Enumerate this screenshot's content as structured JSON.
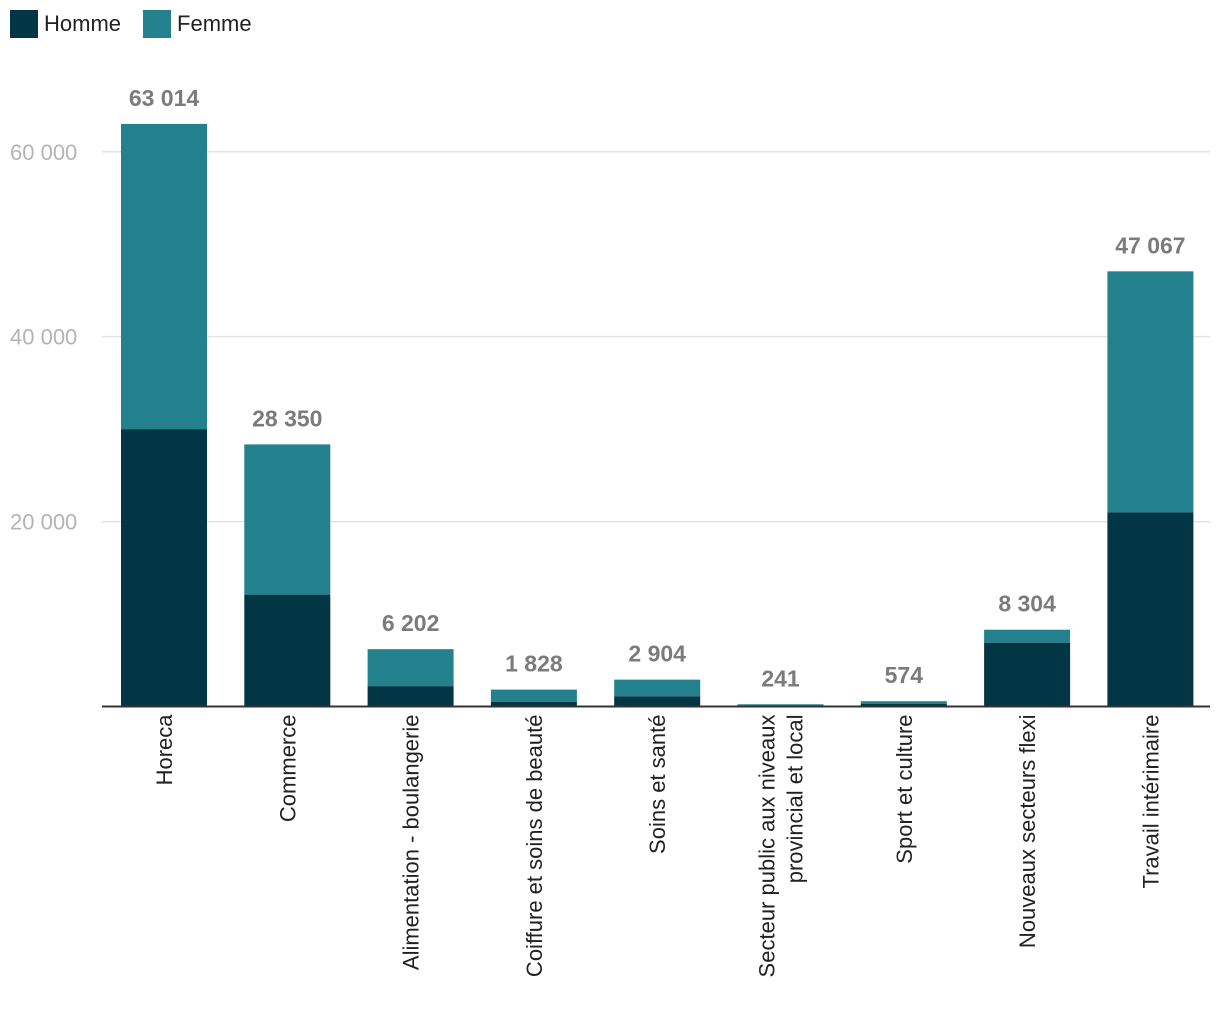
{
  "colors": {
    "homme": "#023644",
    "femme": "#23818d",
    "grid": "#e3e3e3",
    "axis": "#333333",
    "tick_text": "#b4b4b4",
    "total_text": "#7b7b7b",
    "cat_text": "#222222"
  },
  "legend": {
    "homme_label": "Homme",
    "femme_label": "Femme"
  },
  "chart_data": {
    "type": "bar",
    "stacked": true,
    "title": "",
    "xlabel": "",
    "ylabel": "",
    "ylim": [
      0,
      60000
    ],
    "yticks": [
      20000,
      40000,
      60000
    ],
    "ytick_labels": [
      "20 000",
      "40 000",
      "60 000"
    ],
    "grid": true,
    "legend_position": "top-left",
    "categories": [
      [
        "Horeca"
      ],
      [
        "Commerce"
      ],
      [
        "Alimentation - boulangerie"
      ],
      [
        "Coiffure et soins de beauté"
      ],
      [
        "Soins et santé"
      ],
      [
        "Secteur public aux niveaux",
        "provincial et local"
      ],
      [
        "Sport et culture"
      ],
      [
        "Nouveaux secteurs flexi"
      ],
      [
        "Travail intérimaire"
      ]
    ],
    "series": [
      {
        "name": "Homme",
        "values": [
          30000,
          12100,
          2200,
          500,
          1100,
          100,
          300,
          6900,
          21000
        ]
      },
      {
        "name": "Femme",
        "values": [
          33014,
          16250,
          4002,
          1328,
          1804,
          141,
          274,
          1404,
          26067
        ]
      }
    ],
    "totals": [
      63014,
      28350,
      6202,
      1828,
      2904,
      241,
      574,
      8304,
      47067
    ],
    "total_labels": [
      "63 014",
      "28 350",
      "6 202",
      "1 828",
      "2 904",
      "241",
      "574",
      "8 304",
      "47 067"
    ]
  }
}
